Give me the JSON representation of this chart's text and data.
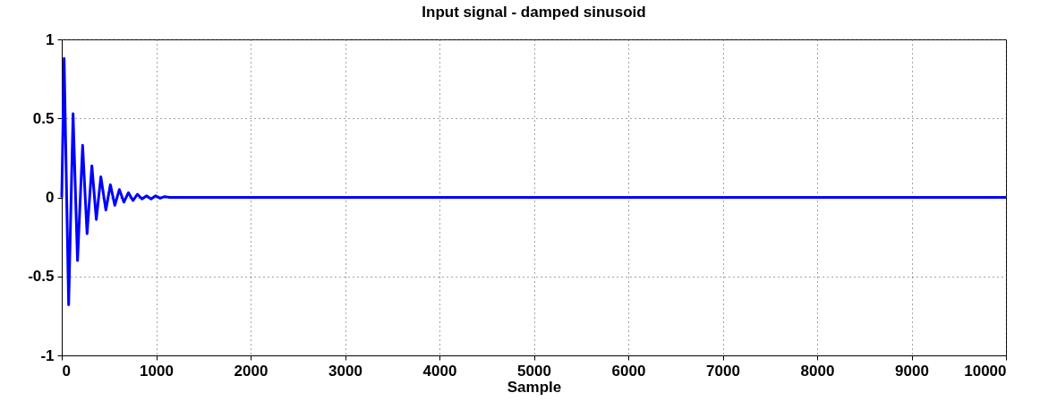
{
  "chart_data": {
    "type": "line",
    "title": "Input signal - damped sinusoid",
    "xlabel": "Sample",
    "x": [
      0,
      25,
      73,
      120,
      167,
      221,
      268,
      319,
      366,
      414,
      467,
      515,
      562,
      610,
      658,
      706,
      754,
      802,
      850,
      898,
      946,
      994,
      1042,
      1090,
      1140,
      10000
    ],
    "series": [
      {
        "color": "#0000ff",
        "values": [
          0,
          0.88,
          -0.68,
          0.53,
          -0.4,
          0.33,
          -0.23,
          0.2,
          -0.14,
          0.13,
          -0.08,
          0.08,
          -0.05,
          0.05,
          -0.03,
          0.03,
          -0.02,
          0.02,
          -0.01,
          0.01,
          -0.01,
          0.01,
          -0.005,
          0.005,
          0,
          0
        ]
      }
    ],
    "xlim": [
      0,
      10000
    ],
    "xticks": [
      0,
      1000,
      2000,
      3000,
      4000,
      5000,
      6000,
      7000,
      8000,
      9000,
      10000
    ],
    "ylim": [
      -1,
      1
    ],
    "yticks": [
      -1,
      -0.5,
      0,
      0.5,
      1
    ],
    "grid": true,
    "marker": "none",
    "line_style": "solid"
  }
}
